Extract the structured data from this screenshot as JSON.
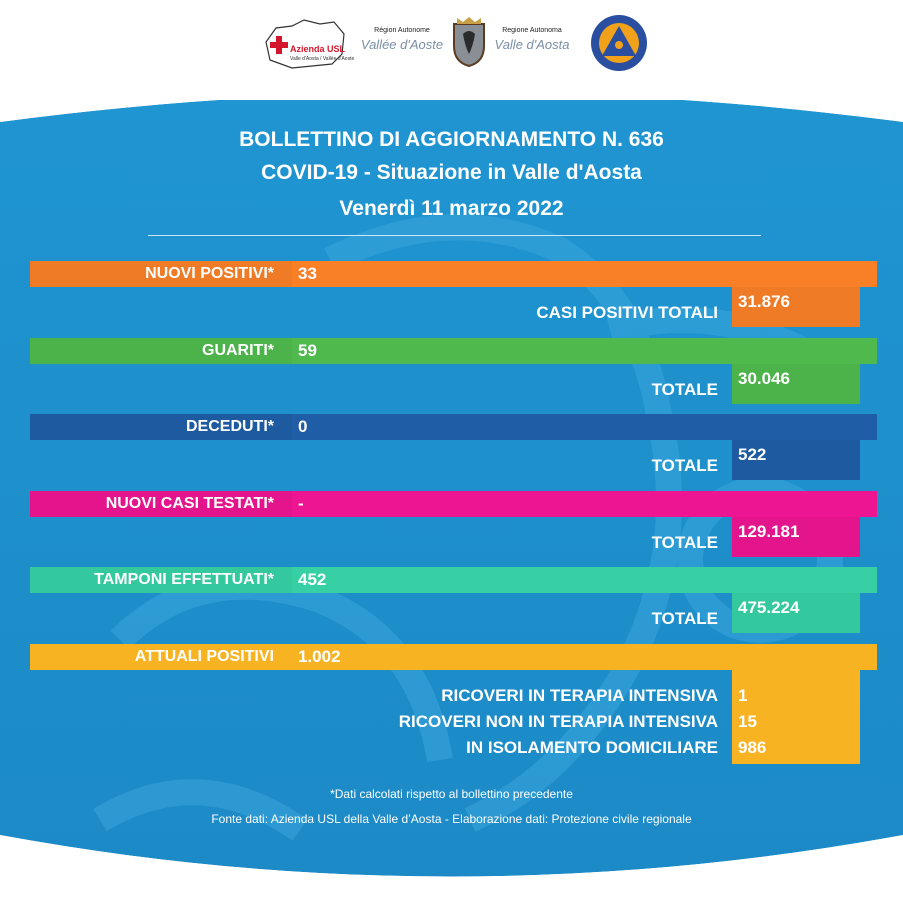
{
  "header": {
    "logo_usl": {
      "name": "Azienda USL",
      "sub": "Valle d'Aosta / Vallée d'Aoste"
    },
    "logo_region_1": {
      "small": "Région Autonome",
      "big": "Vallée d'Aoste"
    },
    "logo_region_2": {
      "small": "Regione Autonoma",
      "big": "Valle d'Aosta"
    }
  },
  "title": {
    "line1": "BOLLETTINO DI AGGIORNAMENTO N. 636",
    "line2": "COVID-19 - Situazione in Valle d'Aosta",
    "line3": "Venerdì 11 marzo 2022"
  },
  "stats": [
    {
      "label": "NUOVI POSITIVI*",
      "value": "33",
      "total_label": "CASI POSITIVI TOTALI",
      "total_value": "31.876",
      "color": "#f07b26"
    },
    {
      "label": "GUARITI*",
      "value": "59",
      "total_label": "TOTALE",
      "total_value": "30.046",
      "color": "#4cb24a"
    },
    {
      "label": "DECEDUTI*",
      "value": "0",
      "total_label": "TOTALE",
      "total_value": "522",
      "color": "#1e5aa0"
    },
    {
      "label": "NUOVI CASI TESTATI*",
      "value": "-",
      "total_label": "TOTALE",
      "total_value": "129.181",
      "color": "#e4148c"
    },
    {
      "label": "TAMPONI EFFETTUATI*",
      "value": "452",
      "total_label": "TOTALE",
      "total_value": "475.224",
      "color": "#34c89e"
    }
  ],
  "attuali": {
    "label": "ATTUALI POSITIVI",
    "value": "1.002",
    "color": "#f8b322",
    "details": [
      {
        "label": "RICOVERI IN TERAPIA INTENSIVA",
        "value": "1"
      },
      {
        "label": "RICOVERI NON IN TERAPIA INTENSIVA",
        "value": "15"
      },
      {
        "label": "IN ISOLAMENTO DOMICILIARE",
        "value": "986"
      }
    ]
  },
  "footer": {
    "note": "*Dati calcolati rispetto al bollettino precedente",
    "source": "Fonte dati: Azienda USL della Valle d’Aosta - Elaborazione dati: Protezione civile regionale"
  },
  "colors": {
    "background": "#1e94d0",
    "background_light": "#3aa7dc"
  }
}
